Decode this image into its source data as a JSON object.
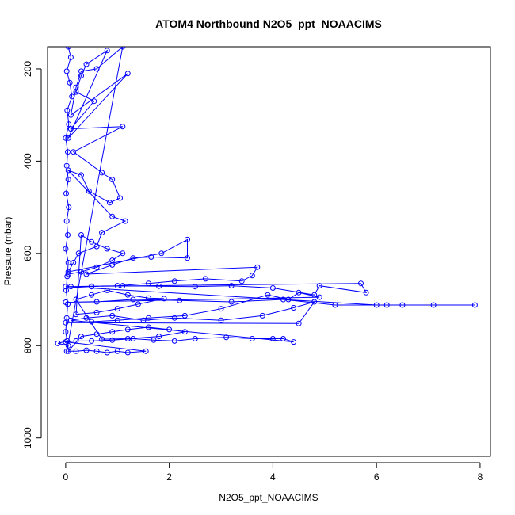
{
  "chart_data": {
    "type": "scatter",
    "title": "ATOM4 Northbound N2O5_ppt_NOAACIMS",
    "xlabel": "N2O5_ppt_NOAACIMS",
    "ylabel": "Pressure (mbar)",
    "xlim": [
      -0.35,
      8.2
    ],
    "ylim": [
      1040,
      152
    ],
    "y_reversed": true,
    "x_ticks": [
      0,
      2,
      4,
      6,
      8
    ],
    "y_ticks": [
      200,
      400,
      600,
      800,
      1000
    ],
    "grid": false,
    "legend": "none",
    "series": [
      {
        "values_description": "N2O5 (ppt) vs pressure (mbar), points joined by lines in flight order",
        "points": [
          [
            0.05,
            152
          ],
          [
            0.1,
            175
          ],
          [
            0.02,
            205
          ],
          [
            0.08,
            230
          ],
          [
            0.12,
            260
          ],
          [
            0.03,
            290
          ],
          [
            0.06,
            320
          ],
          [
            0.0,
            350
          ],
          [
            0.04,
            380
          ],
          [
            0.02,
            410
          ],
          [
            0.05,
            440
          ],
          [
            0.01,
            470
          ],
          [
            0.06,
            500
          ],
          [
            0.02,
            530
          ],
          [
            0.04,
            560
          ],
          [
            0.0,
            590
          ],
          [
            0.05,
            620
          ],
          [
            0.03,
            650
          ],
          [
            0.01,
            680
          ],
          [
            0.04,
            710
          ],
          [
            0.02,
            740
          ],
          [
            0.0,
            770
          ],
          [
            0.03,
            790
          ],
          [
            -0.15,
            795
          ],
          [
            0.05,
            800
          ],
          [
            0.02,
            812
          ],
          [
            1.1,
            152
          ],
          [
            0.6,
            200
          ],
          [
            0.3,
            205
          ],
          [
            0.2,
            240
          ],
          [
            0.1,
            300
          ],
          [
            1.2,
            210
          ],
          [
            0.05,
            350
          ],
          [
            0.8,
            160
          ],
          [
            0.4,
            190
          ],
          [
            0.3,
            215
          ],
          [
            0.2,
            250
          ],
          [
            0.55,
            270
          ],
          [
            0.1,
            330
          ],
          [
            1.1,
            325
          ],
          [
            0.15,
            380
          ],
          [
            0.7,
            425
          ],
          [
            0.9,
            440
          ],
          [
            1.05,
            480
          ],
          [
            0.85,
            490
          ],
          [
            0.45,
            465
          ],
          [
            0.3,
            430
          ],
          [
            0.05,
            420
          ],
          [
            0.9,
            520
          ],
          [
            1.15,
            530
          ],
          [
            0.7,
            555
          ],
          [
            0.6,
            585
          ],
          [
            0.25,
            600
          ],
          [
            0.15,
            620
          ],
          [
            0.05,
            640
          ],
          [
            1.85,
            600
          ],
          [
            2.35,
            570
          ],
          [
            2.35,
            610
          ],
          [
            1.65,
            608
          ],
          [
            1.3,
            610
          ],
          [
            0.9,
            625
          ],
          [
            0.4,
            645
          ],
          [
            3.7,
            630
          ],
          [
            3.6,
            648
          ],
          [
            3.4,
            660
          ],
          [
            2.7,
            655
          ],
          [
            2.1,
            660
          ],
          [
            1.6,
            665
          ],
          [
            1.0,
            670
          ],
          [
            0.5,
            672
          ],
          [
            0.1,
            672
          ],
          [
            5.7,
            665
          ],
          [
            5.8,
            685
          ],
          [
            4.9,
            670
          ],
          [
            4.8,
            690
          ],
          [
            4.0,
            675
          ],
          [
            3.2,
            670
          ],
          [
            2.5,
            672
          ],
          [
            1.8,
            671
          ],
          [
            1.1,
            670
          ],
          [
            0.5,
            671
          ],
          [
            0.0,
            672
          ],
          [
            6.0,
            712
          ],
          [
            6.2,
            712
          ],
          [
            6.5,
            712
          ],
          [
            7.1,
            712
          ],
          [
            7.9,
            712
          ],
          [
            5.2,
            712
          ],
          [
            4.2,
            700
          ],
          [
            3.2,
            705
          ],
          [
            2.2,
            702
          ],
          [
            1.3,
            700
          ],
          [
            0.6,
            705
          ],
          [
            0.0,
            706
          ],
          [
            4.9,
            695
          ],
          [
            4.5,
            685
          ],
          [
            4.3,
            700
          ],
          [
            3.9,
            690
          ],
          [
            3.0,
            720
          ],
          [
            2.3,
            735
          ],
          [
            1.6,
            740
          ],
          [
            1.0,
            745
          ],
          [
            0.5,
            748
          ],
          [
            0.0,
            750
          ],
          [
            4.5,
            752
          ],
          [
            4.8,
            705
          ],
          [
            4.4,
            718
          ],
          [
            3.8,
            735
          ],
          [
            3.0,
            745
          ],
          [
            2.1,
            740
          ],
          [
            1.5,
            745
          ],
          [
            0.9,
            735
          ],
          [
            0.4,
            740
          ],
          [
            0.1,
            745
          ],
          [
            4.4,
            792
          ],
          [
            4.2,
            785
          ],
          [
            4.0,
            785
          ],
          [
            3.6,
            785
          ],
          [
            3.1,
            782
          ],
          [
            2.5,
            785
          ],
          [
            2.1,
            790
          ],
          [
            1.7,
            788
          ],
          [
            1.3,
            785
          ],
          [
            0.9,
            788
          ],
          [
            0.5,
            790
          ],
          [
            0.2,
            790
          ],
          [
            0.0,
            792
          ],
          [
            1.55,
            812
          ],
          [
            1.2,
            815
          ],
          [
            1.0,
            812
          ],
          [
            0.8,
            815
          ],
          [
            0.6,
            812
          ],
          [
            0.4,
            810
          ],
          [
            0.2,
            812
          ],
          [
            0.05,
            812
          ],
          [
            0.3,
            780
          ],
          [
            0.6,
            775
          ],
          [
            0.9,
            770
          ],
          [
            1.2,
            765
          ],
          [
            1.6,
            760
          ],
          [
            2.0,
            765
          ],
          [
            2.3,
            770
          ],
          [
            1.8,
            780
          ],
          [
            1.2,
            785
          ],
          [
            0.7,
            786
          ],
          [
            0.2,
            700
          ],
          [
            0.5,
            690
          ],
          [
            0.8,
            680
          ],
          [
            1.2,
            690
          ],
          [
            1.6,
            697
          ],
          [
            1.9,
            698
          ],
          [
            1.4,
            710
          ],
          [
            1.0,
            720
          ],
          [
            0.6,
            728
          ],
          [
            0.2,
            732
          ],
          [
            0.3,
            560
          ],
          [
            0.5,
            575
          ],
          [
            0.8,
            590
          ],
          [
            1.1,
            600
          ],
          [
            0.9,
            615
          ],
          [
            0.6,
            630
          ],
          [
            0.3,
            640
          ],
          [
            0.05,
            645
          ]
        ]
      }
    ],
    "colors": {
      "series": "#0000ff",
      "axis": "#000000"
    }
  }
}
